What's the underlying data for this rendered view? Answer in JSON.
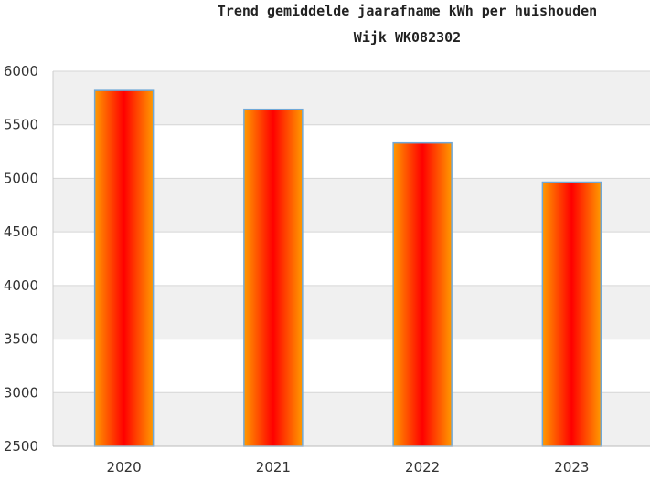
{
  "chart_data": {
    "type": "bar",
    "title": "Trend gemiddelde jaarafname kWh per huishouden",
    "subtitle": "Wijk WK082302",
    "categories": [
      "2020",
      "2021",
      "2022",
      "2023"
    ],
    "values": [
      5820,
      5645,
      5330,
      4965
    ],
    "ylim": [
      2500,
      6000
    ],
    "yticks": [
      2500,
      3000,
      3500,
      4000,
      4500,
      5000,
      5500,
      6000
    ],
    "grid": true,
    "colors": {
      "bar_edge": "#ff9a00",
      "bar_center": "#ff0000",
      "bar_outline": "#6fa8d8",
      "band": "#f0f0f0",
      "gridline": "#d6d6d6"
    }
  }
}
